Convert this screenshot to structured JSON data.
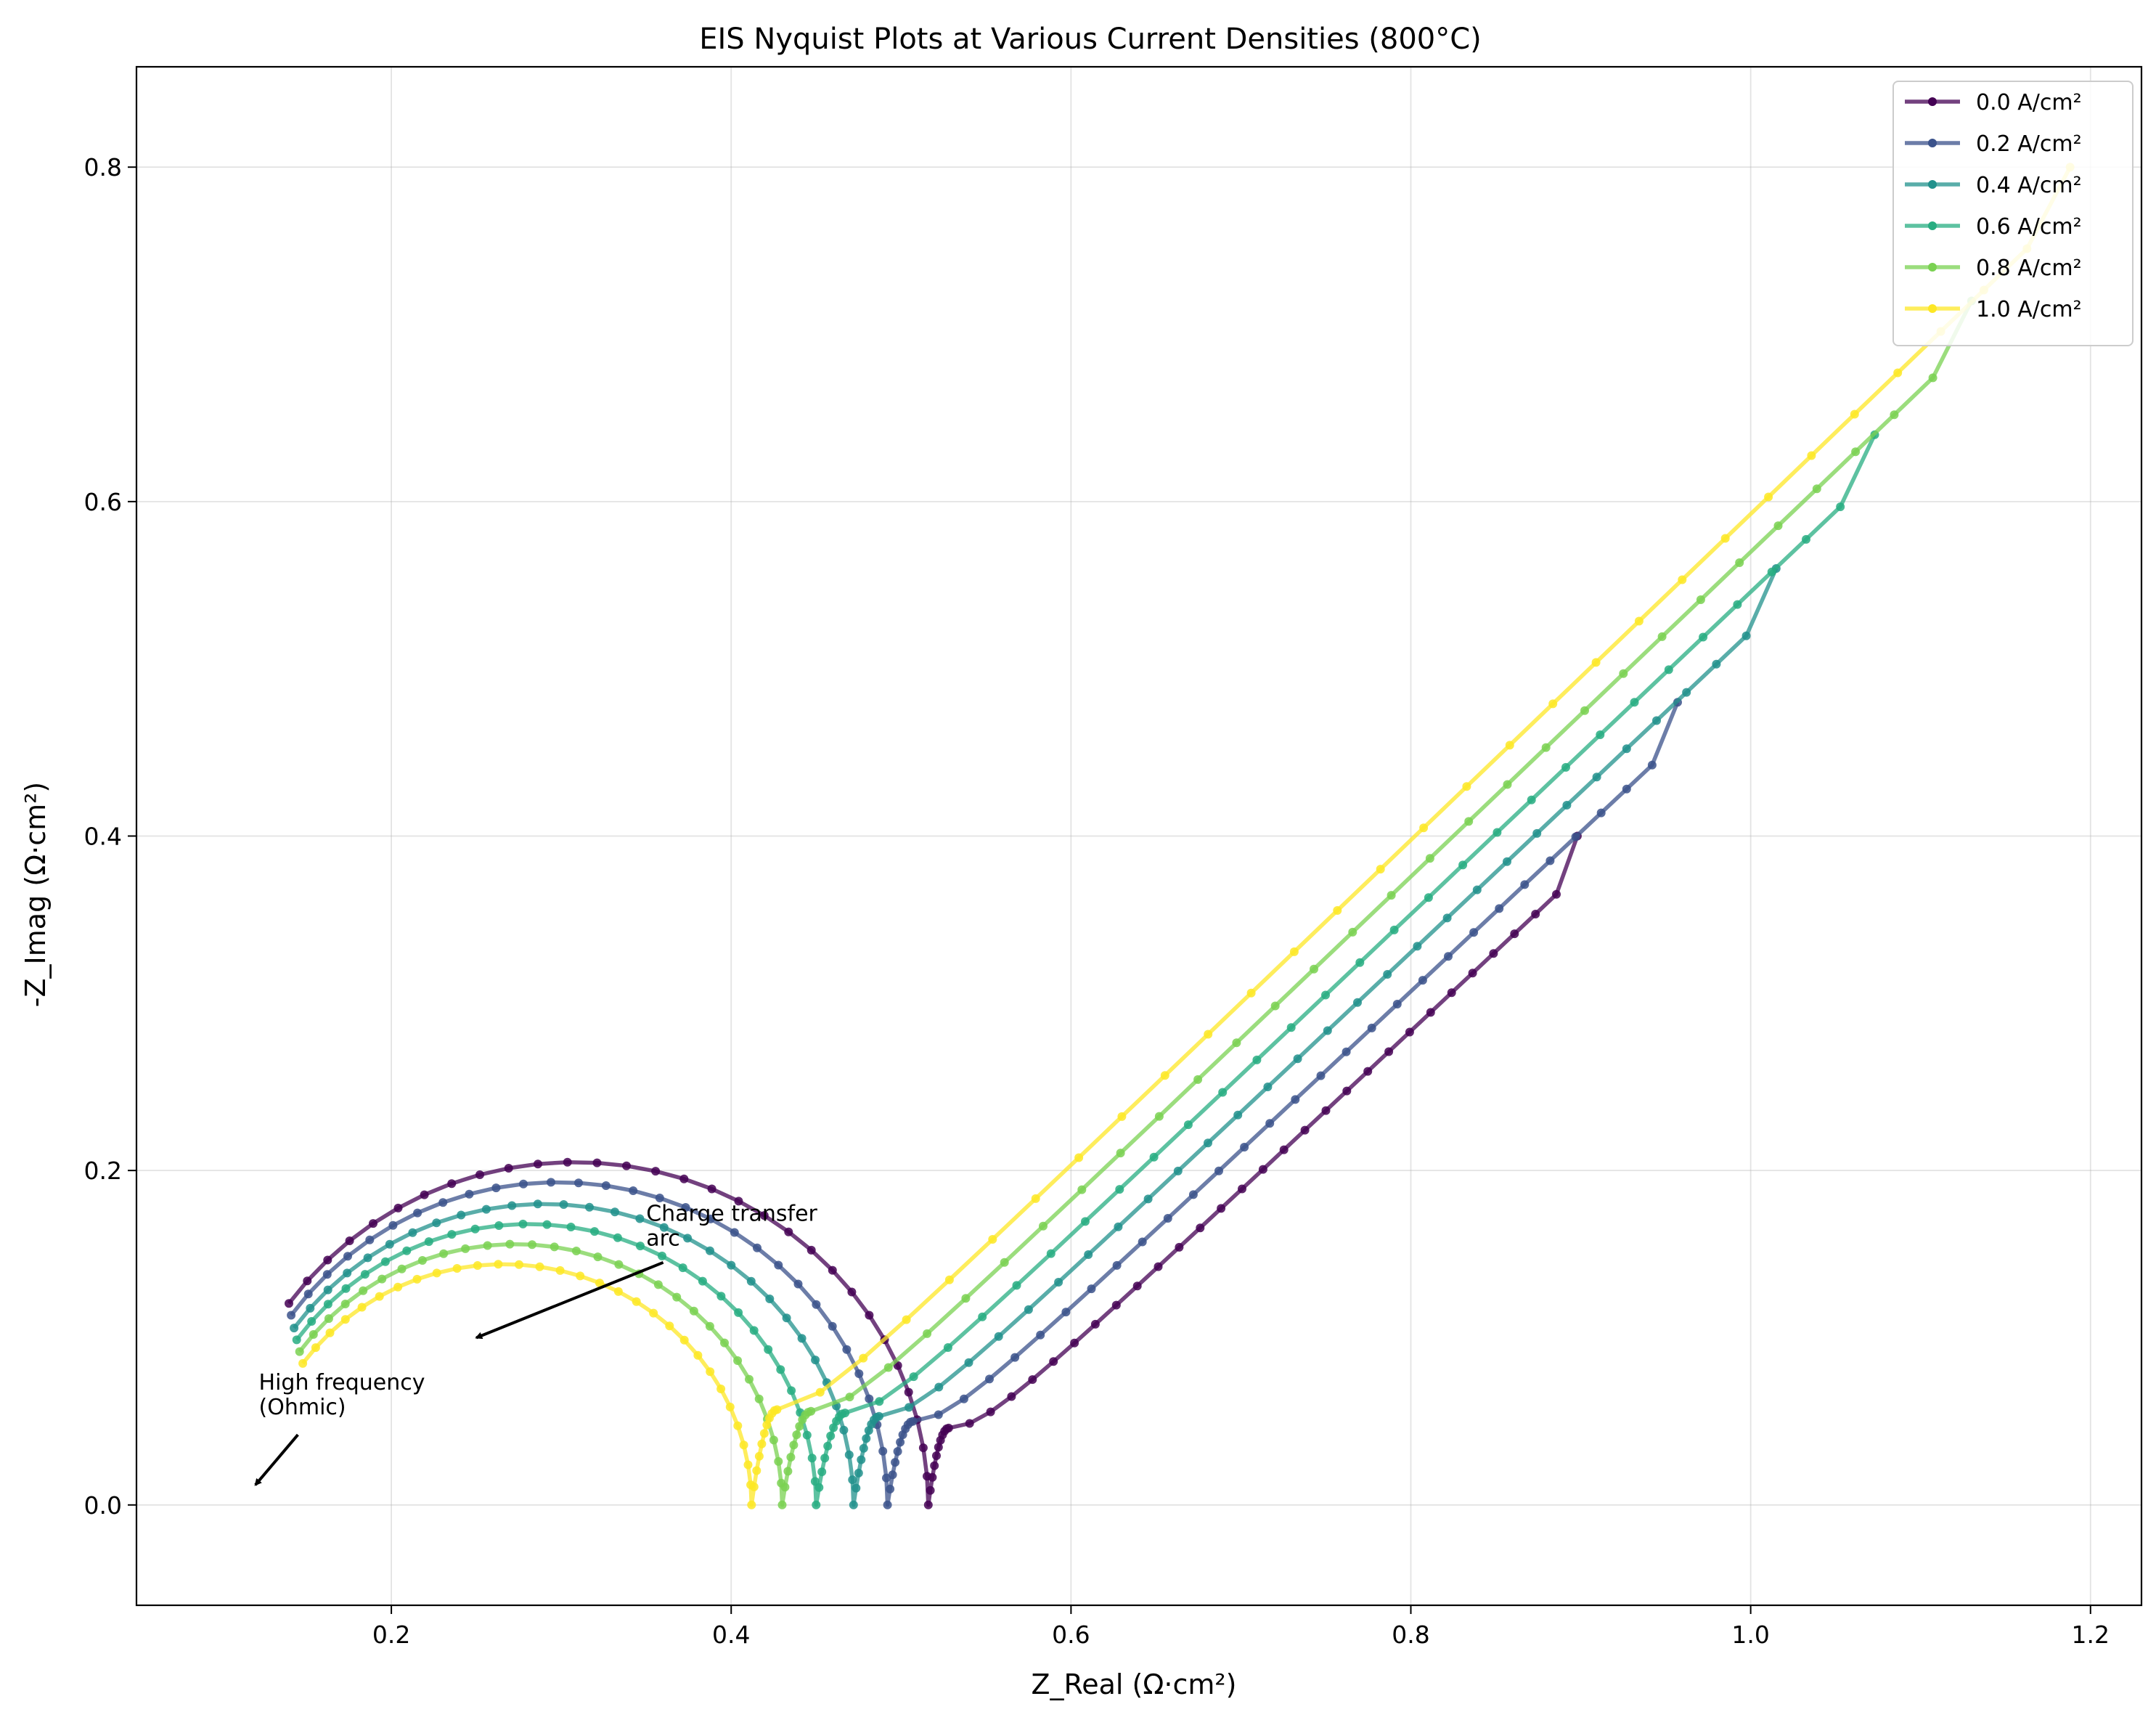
{
  "chart_data": {
    "type": "line",
    "title": "EIS Nyquist Plots at Various Current Densities (800°C)",
    "xlabel": "Z_Real (Ω·cm²)",
    "ylabel": "-Z_Imag (Ω·cm²)",
    "xlim": [
      0.05,
      1.23
    ],
    "ylim": [
      -0.06,
      0.86
    ],
    "xticks": [
      0.2,
      0.4,
      0.6,
      0.8,
      1.0,
      1.2
    ],
    "yticks": [
      0.0,
      0.2,
      0.4,
      0.6,
      0.8
    ],
    "xtick_labels": [
      "0.2",
      "0.4",
      "0.6",
      "0.8",
      "1.0",
      "1.2"
    ],
    "ytick_labels": [
      "0.0",
      "0.2",
      "0.4",
      "0.6",
      "0.8"
    ],
    "grid": true,
    "legend_position": "top-right",
    "series": [
      {
        "name": "0.0 A/cm²",
        "color": "#440154",
        "r0": 0.1,
        "arc_center_x": 0.308,
        "arc_peak": 0.205,
        "valley": [
          0.528,
          0.046
        ],
        "tail_end": [
          0.898,
          0.4
        ]
      },
      {
        "name": "0.2 A/cm²",
        "color": "#3b528b",
        "r0": 0.104,
        "arc_center_x": 0.298,
        "arc_peak": 0.193,
        "valley": [
          0.507,
          0.05
        ],
        "tail_end": [
          0.957,
          0.48
        ]
      },
      {
        "name": "0.4 A/cm²",
        "color": "#21918c",
        "r0": 0.108,
        "arc_center_x": 0.29,
        "arc_peak": 0.18,
        "valley": [
          0.487,
          0.053
        ],
        "tail_end": [
          1.015,
          0.56
        ]
      },
      {
        "name": "0.6 A/cm²",
        "color": "#27ad81",
        "r0": 0.112,
        "arc_center_x": 0.281,
        "arc_peak": 0.168,
        "valley": [
          0.467,
          0.055
        ],
        "tail_end": [
          1.073,
          0.64
        ]
      },
      {
        "name": "0.8 A/cm²",
        "color": "#7ad151",
        "r0": 0.116,
        "arc_center_x": 0.273,
        "arc_peak": 0.156,
        "valley": [
          0.447,
          0.056
        ],
        "tail_end": [
          1.13,
          0.72
        ]
      },
      {
        "name": "1.0 A/cm²",
        "color": "#fde725",
        "r0": 0.12,
        "arc_center_x": 0.266,
        "arc_peak": 0.144,
        "valley": [
          0.427,
          0.057
        ],
        "tail_end": [
          1.188,
          0.8
        ]
      }
    ],
    "annotations": [
      {
        "text_lines": [
          "Charge transfer",
          "arc"
        ],
        "text_xy": [
          0.35,
          0.17
        ],
        "arrow_from": [
          0.36,
          0.145
        ],
        "arrow_to": [
          0.25,
          0.1
        ]
      },
      {
        "text_lines": [
          "High frequency",
          "(Ohmic)"
        ],
        "text_xy": [
          0.122,
          0.069
        ],
        "arrow_from": [
          0.145,
          0.042
        ],
        "arrow_to": [
          0.12,
          0.012
        ]
      }
    ]
  }
}
